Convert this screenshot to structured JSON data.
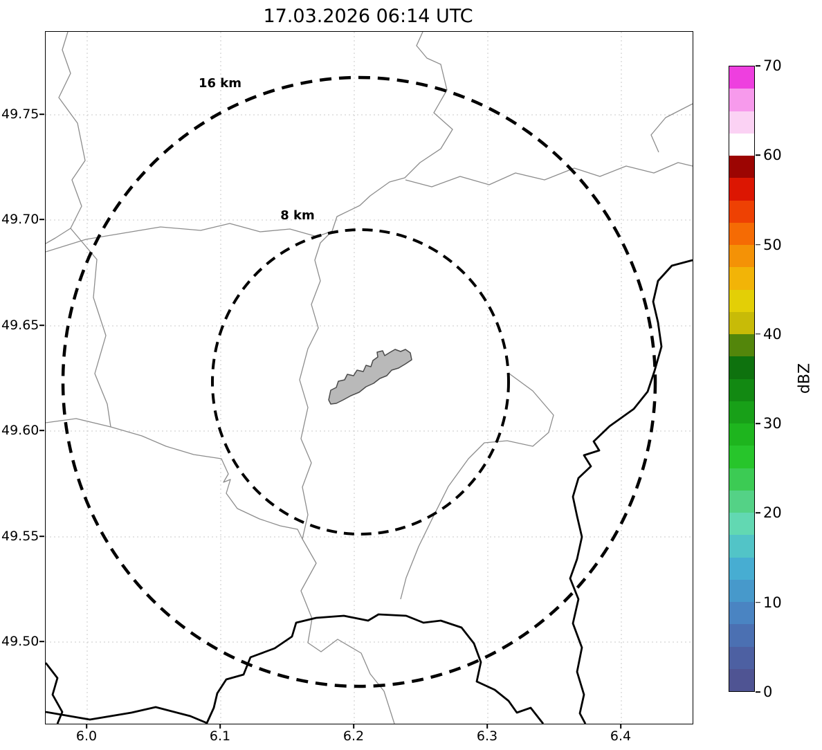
{
  "title": "17.03.2026 06:14 UTC",
  "map": {
    "range_rings": [
      {
        "label": "16 km",
        "radius_km": 16
      },
      {
        "label": "8 km",
        "radius_km": 8
      }
    ],
    "x_tick_labels": [
      "6.0",
      "6.1",
      "6.2",
      "6.3",
      "6.4"
    ],
    "y_tick_labels": [
      "49.75",
      "49.70",
      "49.65",
      "49.60",
      "49.55",
      "49.50"
    ]
  },
  "colorbar": {
    "label": "dBZ",
    "min": 0,
    "max": 70,
    "tick_labels": [
      "0",
      "10",
      "20",
      "30",
      "40",
      "50",
      "60",
      "70"
    ],
    "colors_bottom_to_top": [
      "#4f5493",
      "#4d60a2",
      "#4b70b2",
      "#4a84c2",
      "#4799cb",
      "#47add2",
      "#52c4c7",
      "#62d8b2",
      "#54d286",
      "#3ccb54",
      "#27c52b",
      "#1eb51e",
      "#18a018",
      "#128912",
      "#0e720e",
      "#53860b",
      "#c8bb07",
      "#e3cf06",
      "#f2b407",
      "#f49206",
      "#f56b04",
      "#ee4103",
      "#dc1602",
      "#9c0502",
      "#ffffff",
      "#fbd2f4",
      "#f79aec",
      "#ee3fdf"
    ]
  }
}
